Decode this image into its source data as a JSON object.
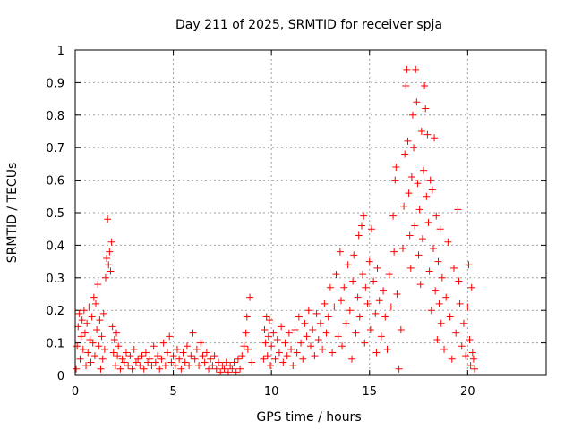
{
  "chart_data": {
    "type": "scatter",
    "title": "Day 211 of 2025, SRMTID for receiver spja",
    "xlabel": "GPS time / hours",
    "ylabel": "SRMTID / TECUs",
    "xlim": [
      0,
      24
    ],
    "ylim": [
      0,
      1
    ],
    "xticks": [
      0,
      5,
      10,
      15,
      20
    ],
    "xtick_labels": [
      "0",
      "5",
      "10",
      "15",
      "20"
    ],
    "yticks": [
      0,
      0.1,
      0.2,
      0.3,
      0.4,
      0.5,
      0.6,
      0.7,
      0.8,
      0.9,
      1
    ],
    "ytick_labels": [
      "0",
      "0.1",
      "0.2",
      "0.3",
      "0.4",
      "0.5",
      "0.6",
      "0.7",
      "0.8",
      "0.9",
      "1"
    ],
    "grid": true,
    "marker": "+",
    "series": [
      {
        "name": "SRMTID",
        "color": "#ff0000",
        "points": [
          [
            0.05,
            0.02
          ],
          [
            0.1,
            0.09
          ],
          [
            0.15,
            0.15
          ],
          [
            0.2,
            0.19
          ],
          [
            0.25,
            0.05
          ],
          [
            0.3,
            0.12
          ],
          [
            0.35,
            0.17
          ],
          [
            0.4,
            0.08
          ],
          [
            0.45,
            0.2
          ],
          [
            0.5,
            0.13
          ],
          [
            0.55,
            0.03
          ],
          [
            0.6,
            0.16
          ],
          [
            0.65,
            0.07
          ],
          [
            0.7,
            0.21
          ],
          [
            0.75,
            0.11
          ],
          [
            0.8,
            0.04
          ],
          [
            0.85,
            0.18
          ],
          [
            0.9,
            0.1
          ],
          [
            0.95,
            0.24
          ],
          [
            1.0,
            0.06
          ],
          [
            1.05,
            0.22
          ],
          [
            1.1,
            0.14
          ],
          [
            1.15,
            0.28
          ],
          [
            1.2,
            0.09
          ],
          [
            1.25,
            0.17
          ],
          [
            1.3,
            0.02
          ],
          [
            1.35,
            0.12
          ],
          [
            1.4,
            0.05
          ],
          [
            1.45,
            0.19
          ],
          [
            1.5,
            0.08
          ],
          [
            1.55,
            0.3
          ],
          [
            1.6,
            0.36
          ],
          [
            1.65,
            0.48
          ],
          [
            1.7,
            0.34
          ],
          [
            1.75,
            0.38
          ],
          [
            1.8,
            0.32
          ],
          [
            1.85,
            0.41
          ],
          [
            1.9,
            0.15
          ],
          [
            1.95,
            0.07
          ],
          [
            2.0,
            0.11
          ],
          [
            2.05,
            0.03
          ],
          [
            2.1,
            0.13
          ],
          [
            2.15,
            0.06
          ],
          [
            2.2,
            0.09
          ],
          [
            2.3,
            0.02
          ],
          [
            2.4,
            0.05
          ],
          [
            2.5,
            0.04
          ],
          [
            2.6,
            0.07
          ],
          [
            2.7,
            0.03
          ],
          [
            2.8,
            0.06
          ],
          [
            2.9,
            0.02
          ],
          [
            3.0,
            0.08
          ],
          [
            3.1,
            0.04
          ],
          [
            3.2,
            0.05
          ],
          [
            3.3,
            0.03
          ],
          [
            3.4,
            0.06
          ],
          [
            3.5,
            0.02
          ],
          [
            3.6,
            0.07
          ],
          [
            3.7,
            0.04
          ],
          [
            3.8,
            0.05
          ],
          [
            3.9,
            0.03
          ],
          [
            4.0,
            0.09
          ],
          [
            4.1,
            0.04
          ],
          [
            4.2,
            0.06
          ],
          [
            4.3,
            0.02
          ],
          [
            4.4,
            0.05
          ],
          [
            4.5,
            0.1
          ],
          [
            4.6,
            0.03
          ],
          [
            4.7,
            0.07
          ],
          [
            4.8,
            0.12
          ],
          [
            4.9,
            0.04
          ],
          [
            5.0,
            0.06
          ],
          [
            5.1,
            0.03
          ],
          [
            5.2,
            0.08
          ],
          [
            5.3,
            0.05
          ],
          [
            5.4,
            0.02
          ],
          [
            5.5,
            0.07
          ],
          [
            5.6,
            0.04
          ],
          [
            5.7,
            0.09
          ],
          [
            5.8,
            0.03
          ],
          [
            5.9,
            0.06
          ],
          [
            6.0,
            0.13
          ],
          [
            6.1,
            0.05
          ],
          [
            6.2,
            0.08
          ],
          [
            6.3,
            0.03
          ],
          [
            6.4,
            0.1
          ],
          [
            6.5,
            0.06
          ],
          [
            6.6,
            0.04
          ],
          [
            6.7,
            0.07
          ],
          [
            6.8,
            0.02
          ],
          [
            6.9,
            0.05
          ],
          [
            7.0,
            0.03
          ],
          [
            7.1,
            0.06
          ],
          [
            7.2,
            0.02
          ],
          [
            7.3,
            0.04
          ],
          [
            7.4,
            0.01
          ],
          [
            7.5,
            0.03
          ],
          [
            7.6,
            0.02
          ],
          [
            7.7,
            0.04
          ],
          [
            7.8,
            0.01
          ],
          [
            7.9,
            0.03
          ],
          [
            8.0,
            0.02
          ],
          [
            8.1,
            0.04
          ],
          [
            8.2,
            0.01
          ],
          [
            8.3,
            0.05
          ],
          [
            8.4,
            0.02
          ],
          [
            8.5,
            0.06
          ],
          [
            8.6,
            0.09
          ],
          [
            8.7,
            0.13
          ],
          [
            8.75,
            0.18
          ],
          [
            8.8,
            0.08
          ],
          [
            8.9,
            0.24
          ],
          [
            9.0,
            0.04
          ],
          [
            9.6,
            0.05
          ],
          [
            9.65,
            0.14
          ],
          [
            9.7,
            0.1
          ],
          [
            9.75,
            0.18
          ],
          [
            9.8,
            0.06
          ],
          [
            9.85,
            0.12
          ],
          [
            9.9,
            0.17
          ],
          [
            9.95,
            0.03
          ],
          [
            10.0,
            0.09
          ],
          [
            10.1,
            0.13
          ],
          [
            10.2,
            0.05
          ],
          [
            10.3,
            0.11
          ],
          [
            10.4,
            0.07
          ],
          [
            10.5,
            0.15
          ],
          [
            10.6,
            0.04
          ],
          [
            10.7,
            0.1
          ],
          [
            10.8,
            0.06
          ],
          [
            10.9,
            0.13
          ],
          [
            11.0,
            0.08
          ],
          [
            11.1,
            0.03
          ],
          [
            11.2,
            0.14
          ],
          [
            11.3,
            0.07
          ],
          [
            11.4,
            0.18
          ],
          [
            11.5,
            0.1
          ],
          [
            11.6,
            0.05
          ],
          [
            11.7,
            0.16
          ],
          [
            11.8,
            0.12
          ],
          [
            11.9,
            0.2
          ],
          [
            12.0,
            0.09
          ],
          [
            12.1,
            0.14
          ],
          [
            12.2,
            0.06
          ],
          [
            12.3,
            0.19
          ],
          [
            12.4,
            0.11
          ],
          [
            12.5,
            0.16
          ],
          [
            12.6,
            0.08
          ],
          [
            12.7,
            0.22
          ],
          [
            12.8,
            0.13
          ],
          [
            12.9,
            0.18
          ],
          [
            13.0,
            0.27
          ],
          [
            13.1,
            0.07
          ],
          [
            13.2,
            0.21
          ],
          [
            13.3,
            0.31
          ],
          [
            13.4,
            0.12
          ],
          [
            13.5,
            0.38
          ],
          [
            13.55,
            0.23
          ],
          [
            13.6,
            0.09
          ],
          [
            13.7,
            0.27
          ],
          [
            13.8,
            0.16
          ],
          [
            13.9,
            0.34
          ],
          [
            14.0,
            0.2
          ],
          [
            14.1,
            0.05
          ],
          [
            14.15,
            0.29
          ],
          [
            14.2,
            0.37
          ],
          [
            14.3,
            0.13
          ],
          [
            14.4,
            0.24
          ],
          [
            14.45,
            0.43
          ],
          [
            14.5,
            0.18
          ],
          [
            14.6,
            0.46
          ],
          [
            14.65,
            0.31
          ],
          [
            14.7,
            0.49
          ],
          [
            14.75,
            0.1
          ],
          [
            14.8,
            0.27
          ],
          [
            14.9,
            0.22
          ],
          [
            15.0,
            0.35
          ],
          [
            15.05,
            0.14
          ],
          [
            15.1,
            0.45
          ],
          [
            15.2,
            0.29
          ],
          [
            15.3,
            0.19
          ],
          [
            15.35,
            0.07
          ],
          [
            15.4,
            0.33
          ],
          [
            15.5,
            0.23
          ],
          [
            15.6,
            0.12
          ],
          [
            15.7,
            0.26
          ],
          [
            15.8,
            0.18
          ],
          [
            15.9,
            0.08
          ],
          [
            16.0,
            0.31
          ],
          [
            16.1,
            0.21
          ],
          [
            16.2,
            0.49
          ],
          [
            16.25,
            0.38
          ],
          [
            16.3,
            0.6
          ],
          [
            16.35,
            0.64
          ],
          [
            16.4,
            0.25
          ],
          [
            16.5,
            0.02
          ],
          [
            16.6,
            0.14
          ],
          [
            16.7,
            0.39
          ],
          [
            16.75,
            0.52
          ],
          [
            16.8,
            0.68
          ],
          [
            16.85,
            0.89
          ],
          [
            16.9,
            0.94
          ],
          [
            16.95,
            0.72
          ],
          [
            17.0,
            0.56
          ],
          [
            17.05,
            0.43
          ],
          [
            17.1,
            0.33
          ],
          [
            17.15,
            0.61
          ],
          [
            17.2,
            0.8
          ],
          [
            17.25,
            0.7
          ],
          [
            17.3,
            0.46
          ],
          [
            17.35,
            0.94
          ],
          [
            17.4,
            0.84
          ],
          [
            17.45,
            0.59
          ],
          [
            17.5,
            0.37
          ],
          [
            17.55,
            0.51
          ],
          [
            17.6,
            0.28
          ],
          [
            17.65,
            0.75
          ],
          [
            17.7,
            0.42
          ],
          [
            17.75,
            0.63
          ],
          [
            17.8,
            0.89
          ],
          [
            17.85,
            0.82
          ],
          [
            17.9,
            0.55
          ],
          [
            17.95,
            0.74
          ],
          [
            18.0,
            0.47
          ],
          [
            18.05,
            0.32
          ],
          [
            18.1,
            0.6
          ],
          [
            18.15,
            0.2
          ],
          [
            18.2,
            0.57
          ],
          [
            18.25,
            0.39
          ],
          [
            18.3,
            0.73
          ],
          [
            18.35,
            0.26
          ],
          [
            18.4,
            0.49
          ],
          [
            18.45,
            0.11
          ],
          [
            18.5,
            0.35
          ],
          [
            18.55,
            0.22
          ],
          [
            18.6,
            0.45
          ],
          [
            18.65,
            0.16
          ],
          [
            18.7,
            0.3
          ],
          [
            18.8,
            0.08
          ],
          [
            18.9,
            0.24
          ],
          [
            19.0,
            0.41
          ],
          [
            19.1,
            0.18
          ],
          [
            19.2,
            0.05
          ],
          [
            19.3,
            0.33
          ],
          [
            19.4,
            0.13
          ],
          [
            19.5,
            0.51
          ],
          [
            19.55,
            0.29
          ],
          [
            19.6,
            0.22
          ],
          [
            19.7,
            0.09
          ],
          [
            19.8,
            0.16
          ],
          [
            19.9,
            0.06
          ],
          [
            20.0,
            0.21
          ],
          [
            20.05,
            0.34
          ],
          [
            20.1,
            0.11
          ],
          [
            20.15,
            0.03
          ],
          [
            20.2,
            0.27
          ],
          [
            20.25,
            0.07
          ],
          [
            20.3,
            0.05
          ],
          [
            20.35,
            0.02
          ]
        ]
      }
    ]
  }
}
